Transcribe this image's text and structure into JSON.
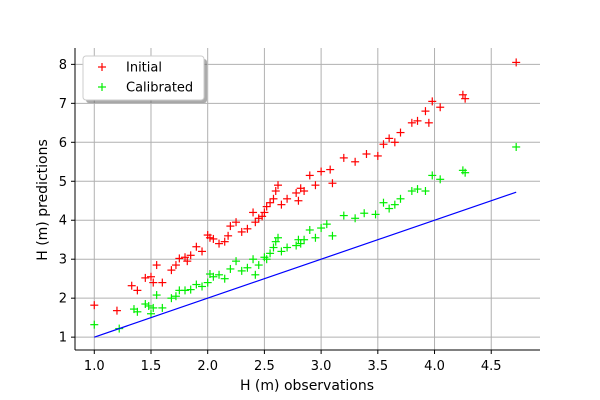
{
  "chart_data": {
    "type": "scatter",
    "xlabel": "H (m) observations",
    "ylabel": "H (m) predictions",
    "xlim": [
      0.83,
      4.93
    ],
    "ylim": [
      0.67,
      8.42
    ],
    "xticks": [
      1.0,
      1.5,
      2.0,
      2.5,
      3.0,
      3.5,
      4.0,
      4.5
    ],
    "xtick_labels": [
      "1.0",
      "1.5",
      "2.0",
      "2.5",
      "3.0",
      "3.5",
      "4.0",
      "4.5"
    ],
    "yticks": [
      1,
      2,
      3,
      4,
      5,
      6,
      7,
      8
    ],
    "ytick_labels": [
      "1",
      "2",
      "3",
      "4",
      "5",
      "6",
      "7",
      "8"
    ],
    "grid": true,
    "legend_position": "top-left",
    "series": [
      {
        "name": "Initial",
        "marker": "+",
        "color": "#ff0000",
        "x": [
          1.0,
          1.2,
          1.33,
          1.38,
          1.45,
          1.5,
          1.52,
          1.55,
          1.6,
          1.68,
          1.72,
          1.75,
          1.8,
          1.82,
          1.85,
          1.9,
          1.95,
          2.0,
          2.02,
          2.05,
          2.1,
          2.15,
          2.18,
          2.2,
          2.25,
          2.3,
          2.35,
          2.4,
          2.42,
          2.45,
          2.48,
          2.5,
          2.52,
          2.55,
          2.58,
          2.6,
          2.62,
          2.65,
          2.7,
          2.78,
          2.8,
          2.82,
          2.85,
          2.9,
          2.95,
          3.0,
          3.08,
          3.1,
          3.2,
          3.3,
          3.4,
          3.5,
          3.55,
          3.6,
          3.65,
          3.7,
          3.8,
          3.85,
          3.92,
          3.95,
          3.98,
          4.05,
          4.25,
          4.27,
          4.72
        ],
        "y": [
          1.82,
          1.68,
          2.32,
          2.2,
          2.52,
          2.55,
          2.4,
          2.85,
          2.4,
          2.72,
          2.85,
          3.02,
          3.05,
          2.95,
          3.1,
          3.32,
          3.2,
          3.62,
          3.55,
          3.52,
          3.4,
          3.45,
          3.6,
          3.85,
          3.95,
          3.7,
          3.78,
          4.2,
          3.95,
          4.05,
          4.1,
          4.2,
          4.35,
          4.45,
          4.55,
          4.75,
          4.9,
          4.4,
          4.55,
          4.7,
          4.5,
          4.82,
          4.75,
          5.15,
          4.9,
          5.25,
          5.3,
          4.95,
          5.6,
          5.5,
          5.7,
          5.65,
          5.95,
          6.1,
          6.0,
          6.25,
          6.5,
          6.55,
          6.8,
          6.5,
          7.05,
          6.9,
          7.22,
          7.12,
          8.05
        ]
      },
      {
        "name": "Calibrated",
        "marker": "+",
        "color": "#00ee00",
        "x": [
          1.0,
          1.22,
          1.35,
          1.38,
          1.45,
          1.48,
          1.5,
          1.52,
          1.55,
          1.6,
          1.68,
          1.72,
          1.75,
          1.8,
          1.85,
          1.9,
          1.95,
          2.0,
          2.02,
          2.05,
          2.1,
          2.15,
          2.2,
          2.25,
          2.3,
          2.35,
          2.4,
          2.42,
          2.45,
          2.5,
          2.52,
          2.55,
          2.58,
          2.6,
          2.62,
          2.65,
          2.7,
          2.78,
          2.8,
          2.82,
          2.85,
          2.9,
          2.95,
          3.0,
          3.05,
          3.1,
          3.2,
          3.3,
          3.38,
          3.48,
          3.55,
          3.6,
          3.65,
          3.7,
          3.8,
          3.85,
          3.92,
          3.98,
          4.05,
          4.25,
          4.27,
          4.72
        ],
        "y": [
          1.32,
          1.22,
          1.72,
          1.65,
          1.85,
          1.8,
          1.6,
          1.75,
          2.08,
          1.75,
          2.0,
          2.05,
          2.2,
          2.2,
          2.22,
          2.35,
          2.3,
          2.4,
          2.62,
          2.55,
          2.6,
          2.5,
          2.75,
          2.95,
          2.7,
          2.78,
          3.0,
          2.6,
          2.85,
          3.05,
          3.0,
          3.15,
          3.3,
          3.45,
          3.55,
          3.2,
          3.3,
          3.35,
          3.5,
          3.4,
          3.5,
          3.75,
          3.55,
          3.8,
          3.9,
          3.6,
          4.12,
          4.05,
          4.18,
          4.15,
          4.45,
          4.3,
          4.4,
          4.55,
          4.75,
          4.8,
          4.75,
          5.15,
          5.05,
          5.28,
          5.22,
          5.88
        ]
      },
      {
        "name": "",
        "type": "line",
        "color": "#0000ff",
        "x": [
          1.0,
          4.72
        ],
        "y": [
          1.0,
          4.72
        ]
      }
    ]
  }
}
